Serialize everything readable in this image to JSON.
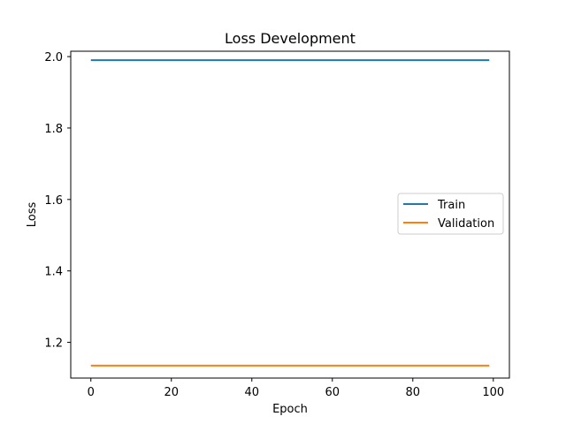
{
  "chart_data": {
    "type": "line",
    "title": "Loss Development",
    "xlabel": "Epoch",
    "ylabel": "Loss",
    "xlim": [
      -5,
      104
    ],
    "ylim": [
      1.1,
      2.015
    ],
    "xticks": [
      0,
      20,
      40,
      60,
      80,
      100
    ],
    "yticks": [
      1.2,
      1.4,
      1.6,
      1.8,
      2.0
    ],
    "xtick_labels": [
      "0",
      "20",
      "40",
      "60",
      "80",
      "100"
    ],
    "ytick_labels": [
      "1.2",
      "1.4",
      "1.6",
      "1.8",
      "2.0"
    ],
    "grid": false,
    "legend_position": "center-right",
    "series": [
      {
        "name": "Train",
        "color": "#1f77b4",
        "x": [
          0,
          99
        ],
        "y": [
          1.99,
          1.99
        ]
      },
      {
        "name": "Validation",
        "color": "#ff7f0e",
        "x": [
          0,
          99
        ],
        "y": [
          1.135,
          1.135
        ]
      }
    ]
  }
}
